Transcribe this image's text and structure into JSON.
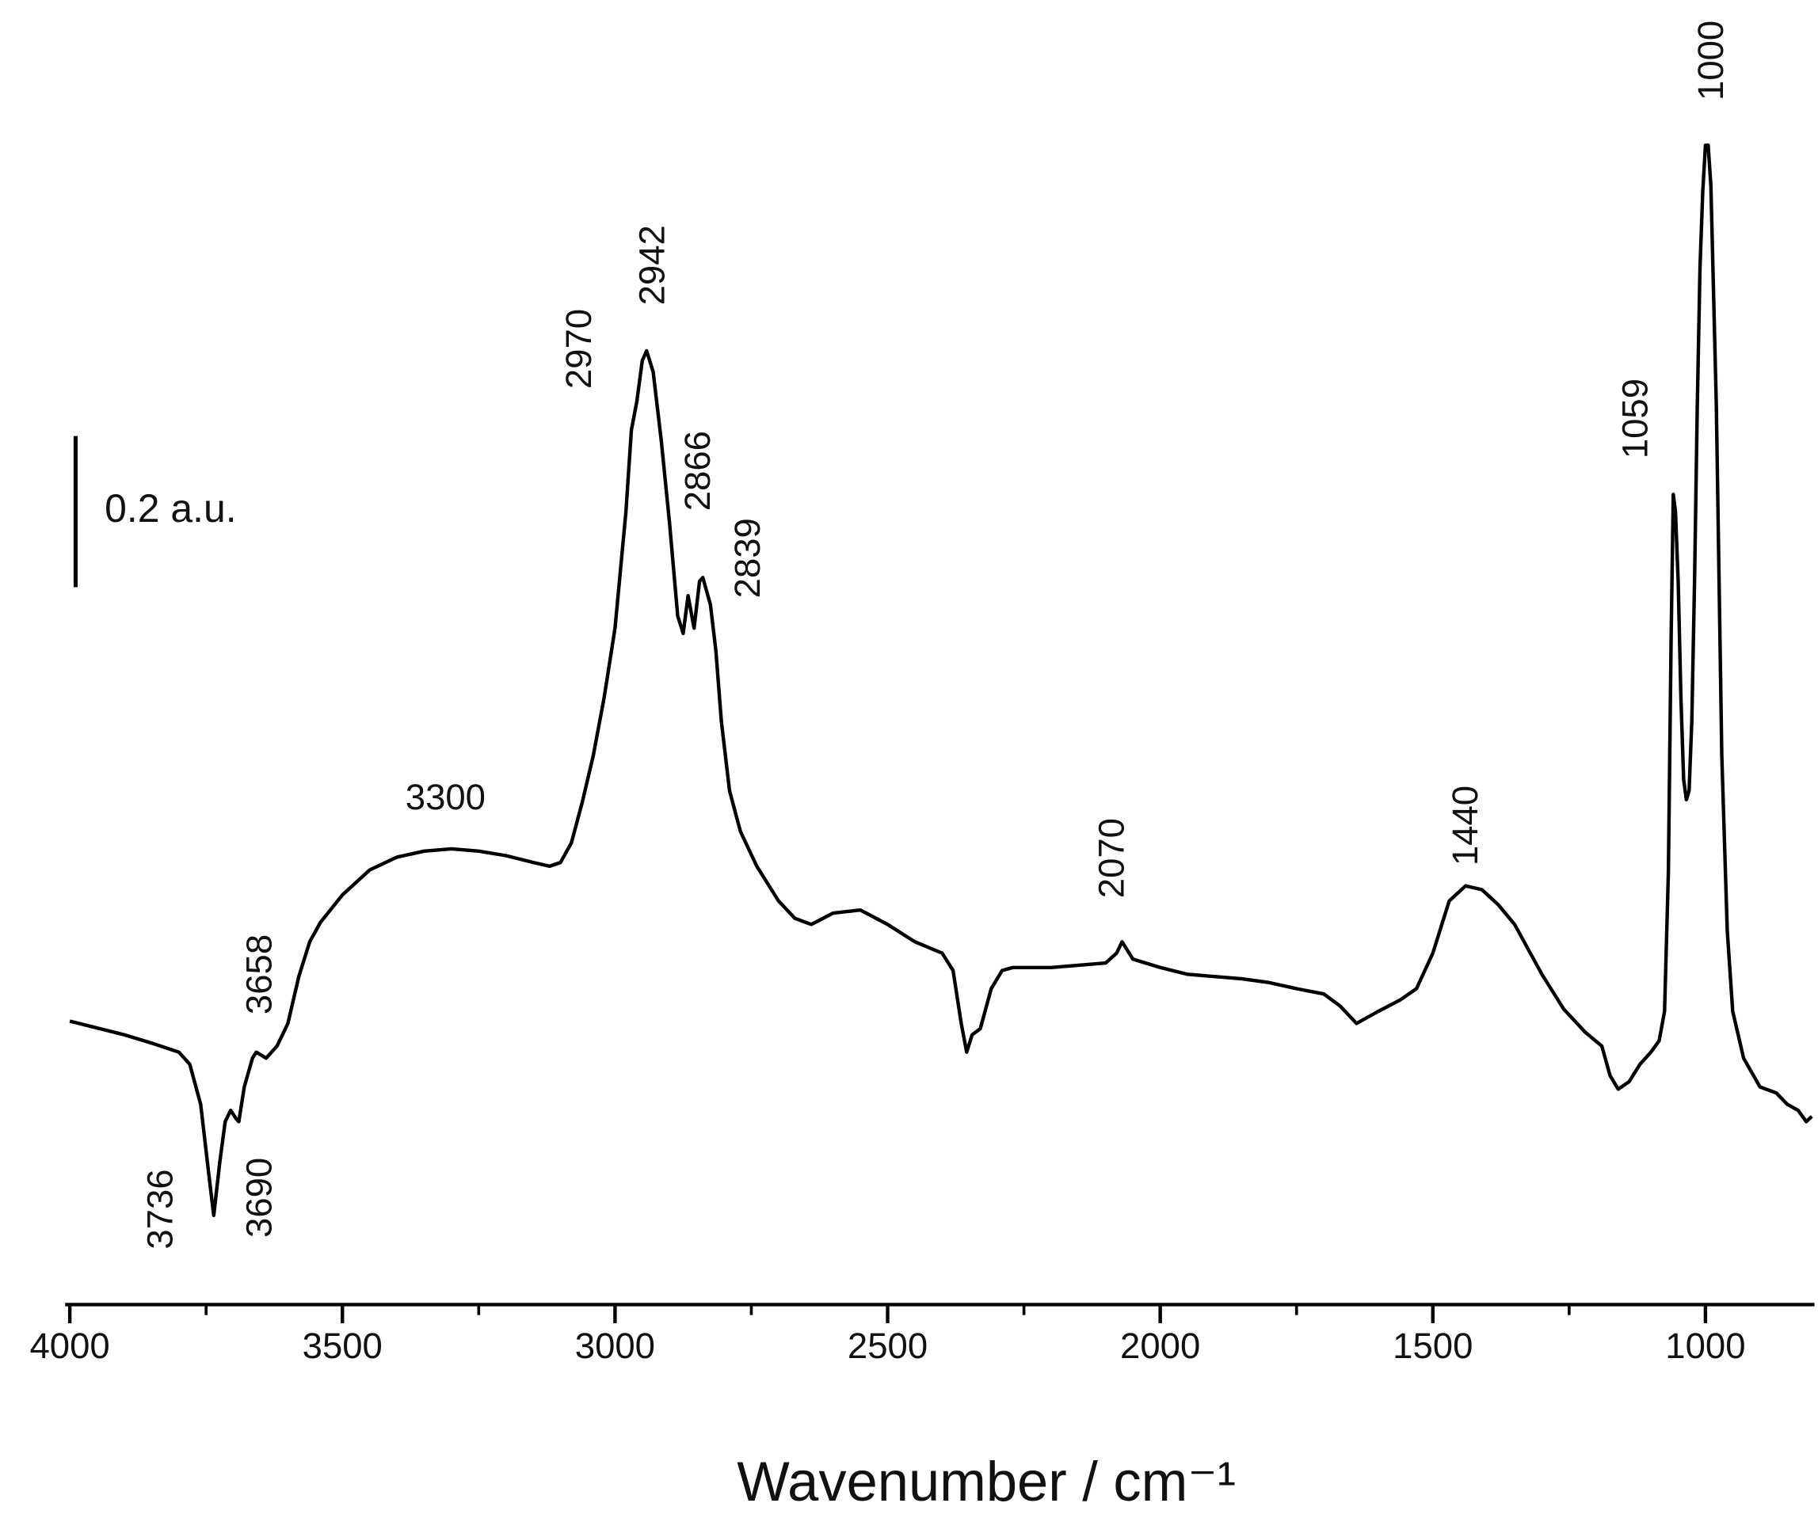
{
  "chart_data": {
    "type": "line",
    "x_label": "Wavenumber / cm⁻¹",
    "xlim": [
      4000,
      800
    ],
    "xticks": [
      4000,
      3500,
      3000,
      2500,
      2000,
      1500,
      1000
    ],
    "xminorticks": [
      3750,
      3250,
      2750,
      2250,
      1750,
      1250
    ],
    "ylim": [
      0,
      1.7
    ],
    "scale_bar": {
      "value": 0.2,
      "label": "0.2 a.u."
    },
    "color": "#000000",
    "x": [
      4000,
      3950,
      3900,
      3850,
      3800,
      3780,
      3760,
      3745,
      3736,
      3725,
      3715,
      3705,
      3695,
      3690,
      3680,
      3665,
      3658,
      3640,
      3620,
      3600,
      3580,
      3560,
      3540,
      3500,
      3450,
      3400,
      3350,
      3300,
      3250,
      3200,
      3150,
      3120,
      3100,
      3080,
      3060,
      3040,
      3020,
      3000,
      2980,
      2970,
      2960,
      2950,
      2942,
      2930,
      2915,
      2900,
      2885,
      2875,
      2866,
      2855,
      2845,
      2839,
      2825,
      2815,
      2805,
      2790,
      2770,
      2740,
      2700,
      2670,
      2640,
      2600,
      2550,
      2500,
      2450,
      2400,
      2380,
      2365,
      2355,
      2345,
      2330,
      2310,
      2290,
      2270,
      2200,
      2150,
      2100,
      2080,
      2070,
      2050,
      2000,
      1950,
      1900,
      1850,
      1800,
      1750,
      1700,
      1670,
      1640,
      1620,
      1600,
      1560,
      1530,
      1500,
      1470,
      1440,
      1410,
      1380,
      1350,
      1300,
      1260,
      1220,
      1190,
      1175,
      1160,
      1140,
      1120,
      1100,
      1085,
      1075,
      1068,
      1063,
      1059,
      1055,
      1050,
      1045,
      1040,
      1035,
      1030,
      1025,
      1020,
      1015,
      1010,
      1005,
      1000,
      995,
      990,
      980,
      970,
      960,
      950,
      930,
      900,
      870,
      850,
      830,
      815,
      805
    ],
    "values": [
      0.375,
      0.366,
      0.357,
      0.346,
      0.334,
      0.318,
      0.265,
      0.172,
      0.118,
      0.188,
      0.242,
      0.257,
      0.246,
      0.242,
      0.288,
      0.326,
      0.334,
      0.326,
      0.342,
      0.372,
      0.434,
      0.48,
      0.506,
      0.542,
      0.575,
      0.592,
      0.6,
      0.603,
      0.6,
      0.594,
      0.585,
      0.58,
      0.585,
      0.611,
      0.665,
      0.726,
      0.803,
      0.895,
      1.049,
      1.157,
      1.195,
      1.249,
      1.262,
      1.234,
      1.142,
      1.034,
      0.911,
      0.888,
      0.938,
      0.895,
      0.957,
      0.962,
      0.926,
      0.865,
      0.772,
      0.68,
      0.626,
      0.58,
      0.534,
      0.511,
      0.503,
      0.518,
      0.522,
      0.503,
      0.48,
      0.465,
      0.442,
      0.372,
      0.334,
      0.357,
      0.365,
      0.418,
      0.442,
      0.446,
      0.446,
      0.449,
      0.452,
      0.465,
      0.48,
      0.457,
      0.446,
      0.437,
      0.434,
      0.431,
      0.426,
      0.418,
      0.411,
      0.395,
      0.372,
      0.38,
      0.388,
      0.403,
      0.418,
      0.465,
      0.534,
      0.554,
      0.549,
      0.529,
      0.503,
      0.437,
      0.391,
      0.36,
      0.342,
      0.303,
      0.285,
      0.295,
      0.318,
      0.334,
      0.349,
      0.388,
      0.572,
      0.88,
      1.072,
      1.049,
      0.957,
      0.803,
      0.695,
      0.668,
      0.68,
      0.772,
      0.957,
      1.188,
      1.372,
      1.472,
      1.534,
      1.534,
      1.48,
      1.188,
      0.726,
      0.495,
      0.388,
      0.326,
      0.288,
      0.28,
      0.265,
      0.257,
      0.242,
      0.249
    ],
    "annotations": [
      3736,
      3690,
      3658,
      3300,
      2970,
      2942,
      2866,
      2839,
      2070,
      1440,
      1059,
      1000
    ]
  }
}
